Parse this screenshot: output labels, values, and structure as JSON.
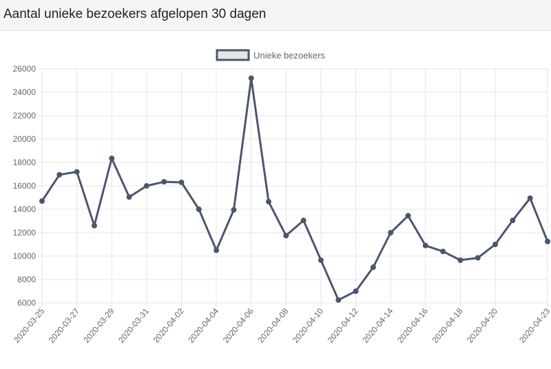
{
  "header": {
    "title": "Aantal unieke bezoekers afgelopen 30 dagen"
  },
  "colors": {
    "line": "#4b566e",
    "legend_fill": "#e6e6e6",
    "grid": "#e5e5e5",
    "tick_text": "#666666"
  },
  "chart_data": {
    "type": "line",
    "title": "",
    "xlabel": "",
    "ylabel": "",
    "ylim": [
      6000,
      26000
    ],
    "yticks": [
      6000,
      8000,
      10000,
      12000,
      14000,
      16000,
      18000,
      20000,
      22000,
      24000,
      26000
    ],
    "x_tick_labels": [
      "2020-03-25",
      "2020-03-27",
      "2020-03-29",
      "2020-03-31",
      "2020-04-02",
      "2020-04-04",
      "2020-04-06",
      "2020-04-08",
      "2020-04-10",
      "2020-04-12",
      "2020-04-14",
      "2020-04-16",
      "2020-04-18",
      "2020-04-20",
      "2020-04-23"
    ],
    "legend": {
      "position": "top-center",
      "label": "Unieke bezoekers"
    },
    "grid": true,
    "x": [
      "2020-03-25",
      "2020-03-26",
      "2020-03-27",
      "2020-03-28",
      "2020-03-29",
      "2020-03-30",
      "2020-03-31",
      "2020-04-01",
      "2020-04-02",
      "2020-04-03",
      "2020-04-04",
      "2020-04-05",
      "2020-04-06",
      "2020-04-07",
      "2020-04-08",
      "2020-04-09",
      "2020-04-10",
      "2020-04-11",
      "2020-04-12",
      "2020-04-13",
      "2020-04-14",
      "2020-04-15",
      "2020-04-16",
      "2020-04-17",
      "2020-04-18",
      "2020-04-19",
      "2020-04-20",
      "2020-04-21",
      "2020-04-22",
      "2020-04-23"
    ],
    "series": [
      {
        "name": "Unieke bezoekers",
        "values": [
          14700,
          16950,
          17200,
          12600,
          18350,
          15050,
          16000,
          16350,
          16300,
          14000,
          10500,
          13950,
          25200,
          14650,
          11750,
          13050,
          9650,
          6250,
          7000,
          9050,
          12000,
          13450,
          10900,
          10400,
          9650,
          9850,
          11000,
          13050,
          14950,
          11250
        ]
      }
    ]
  }
}
